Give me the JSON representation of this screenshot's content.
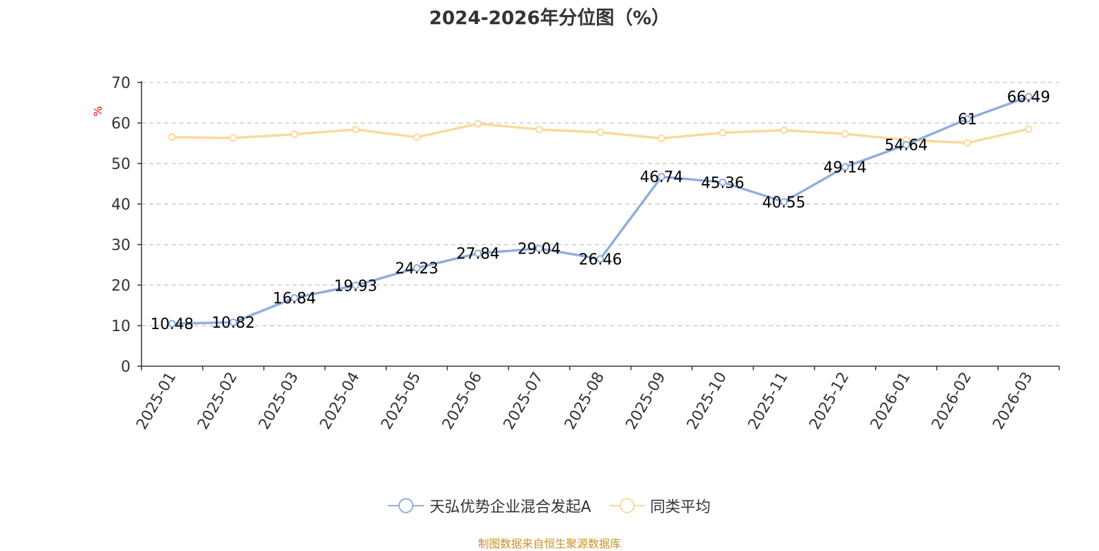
{
  "chart_data": {
    "type": "line",
    "title": "2024-2026年分位图（%）",
    "ylabel": "%",
    "xlabel": "",
    "categories": [
      "2025-01",
      "2025-02",
      "2025-03",
      "2025-04",
      "2025-05",
      "2025-06",
      "2025-07",
      "2025-08",
      "2025-09",
      "2025-10",
      "2025-11",
      "2025-12",
      "2026-01",
      "2026-02",
      "2026-03"
    ],
    "ylim": [
      0,
      70
    ],
    "yticks": [
      "0",
      "10",
      "20",
      "30",
      "40",
      "50",
      "60",
      "70"
    ],
    "grid": true,
    "legend_position": "bottom",
    "series": [
      {
        "name": "天弘优势企业混合发起A",
        "color": "#8eaedb",
        "values": [
          10.48,
          10.82,
          16.84,
          19.93,
          24.23,
          27.84,
          29.04,
          26.46,
          46.74,
          45.36,
          40.55,
          49.14,
          54.64,
          61,
          66.49
        ],
        "labels": [
          "10.48",
          "10.82",
          "16.84",
          "19.93",
          "24.23",
          "27.84",
          "29.04",
          "26.46",
          "46.74",
          "45.36",
          "40.55",
          "49.14",
          "54.64",
          "61",
          "66.49"
        ]
      },
      {
        "name": "同类平均",
        "color": "#fad99a",
        "values": [
          56.5,
          56.3,
          57.2,
          58.4,
          56.5,
          59.8,
          58.4,
          57.7,
          56.2,
          57.6,
          58.2,
          57.3,
          55.8,
          55.1,
          58.5
        ]
      }
    ]
  },
  "source": "制图数据来自恒生聚源数据库"
}
